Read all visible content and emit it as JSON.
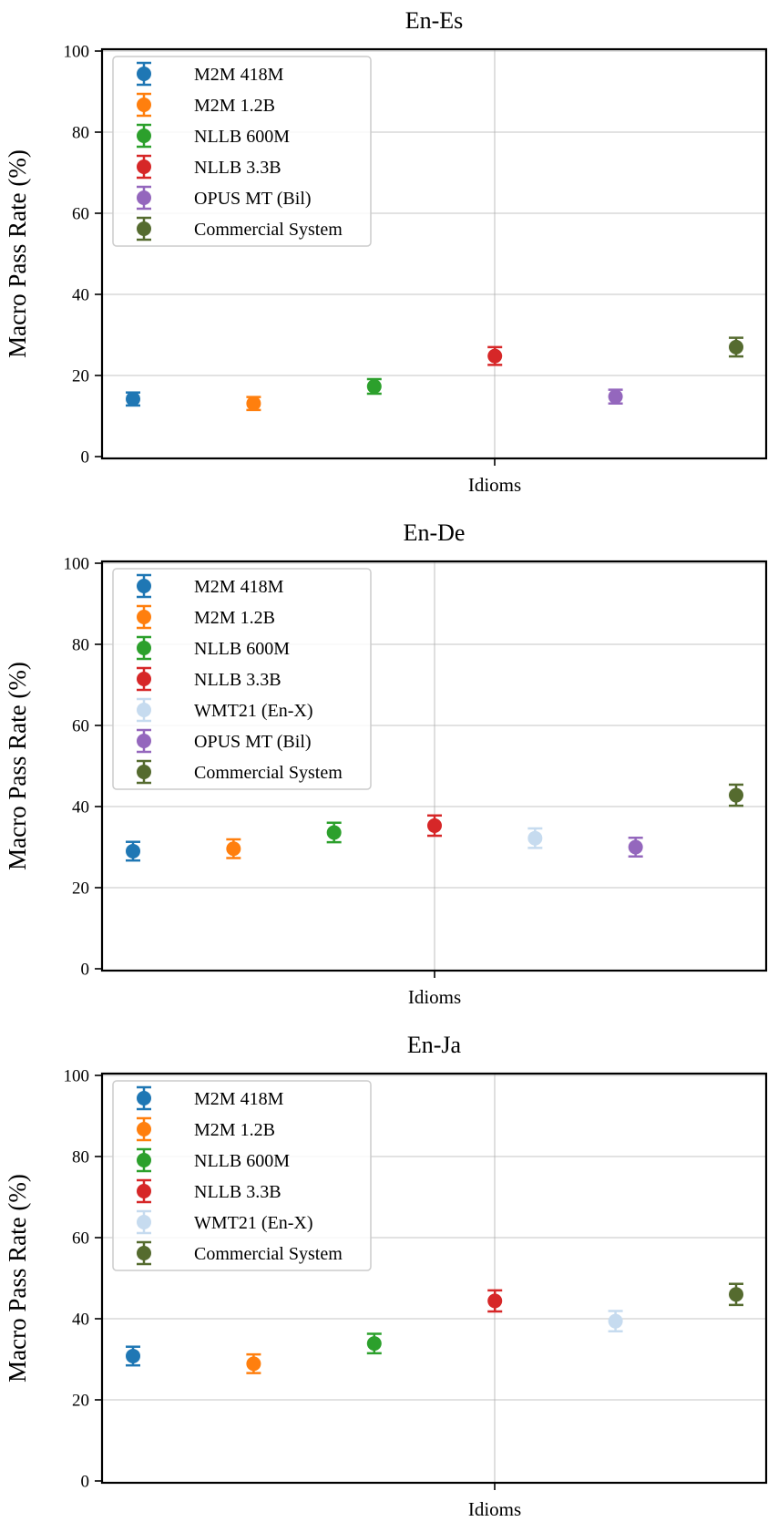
{
  "chart_data": [
    {
      "type": "scatter",
      "title": "En-Es",
      "xlabel": "",
      "ylabel": "Macro Pass Rate (%)",
      "category": "Idioms",
      "ylim": [
        0,
        100
      ],
      "yticks": [
        0,
        20,
        40,
        60,
        80,
        100
      ],
      "grid": true,
      "legend_position": "top-left",
      "series": [
        {
          "name": "M2M 418M",
          "color": "#1f77b4",
          "value": 14.2,
          "err": 1.6
        },
        {
          "name": "M2M 1.2B",
          "color": "#ff7f0e",
          "value": 13.1,
          "err": 1.6
        },
        {
          "name": "NLLB 600M",
          "color": "#2ca02c",
          "value": 17.3,
          "err": 1.8
        },
        {
          "name": "NLLB 3.3B",
          "color": "#d62728",
          "value": 24.8,
          "err": 2.2
        },
        {
          "name": "OPUS MT (Bil)",
          "color": "#9467bd",
          "value": 14.8,
          "err": 1.7
        },
        {
          "name": "Commercial System",
          "color": "#556b2f",
          "value": 27.0,
          "err": 2.3
        }
      ]
    },
    {
      "type": "scatter",
      "title": "En-De",
      "xlabel": "",
      "ylabel": "Macro Pass Rate (%)",
      "category": "Idioms",
      "ylim": [
        0,
        100
      ],
      "yticks": [
        0,
        20,
        40,
        60,
        80,
        100
      ],
      "grid": true,
      "legend_position": "top-left",
      "series": [
        {
          "name": "M2M 418M",
          "color": "#1f77b4",
          "value": 29.0,
          "err": 2.3
        },
        {
          "name": "M2M 1.2B",
          "color": "#ff7f0e",
          "value": 29.6,
          "err": 2.3
        },
        {
          "name": "NLLB 600M",
          "color": "#2ca02c",
          "value": 33.6,
          "err": 2.4
        },
        {
          "name": "NLLB 3.3B",
          "color": "#d62728",
          "value": 35.3,
          "err": 2.5
        },
        {
          "name": "WMT21 (En-X)",
          "color": "#c6dbef",
          "value": 32.2,
          "err": 2.4
        },
        {
          "name": "OPUS MT (Bil)",
          "color": "#9467bd",
          "value": 30.0,
          "err": 2.3
        },
        {
          "name": "Commercial System",
          "color": "#556b2f",
          "value": 42.8,
          "err": 2.6
        }
      ]
    },
    {
      "type": "scatter",
      "title": "En-Ja",
      "xlabel": "",
      "ylabel": "Macro Pass Rate (%)",
      "category": "Idioms",
      "ylim": [
        0,
        100
      ],
      "yticks": [
        0,
        20,
        40,
        60,
        80,
        100
      ],
      "grid": true,
      "legend_position": "top-left",
      "series": [
        {
          "name": "M2M 418M",
          "color": "#1f77b4",
          "value": 30.8,
          "err": 2.3
        },
        {
          "name": "M2M 1.2B",
          "color": "#ff7f0e",
          "value": 28.9,
          "err": 2.3
        },
        {
          "name": "NLLB 600M",
          "color": "#2ca02c",
          "value": 33.9,
          "err": 2.4
        },
        {
          "name": "NLLB 3.3B",
          "color": "#d62728",
          "value": 44.4,
          "err": 2.6
        },
        {
          "name": "WMT21 (En-X)",
          "color": "#c6dbef",
          "value": 39.4,
          "err": 2.5
        },
        {
          "name": "Commercial System",
          "color": "#556b2f",
          "value": 46.0,
          "err": 2.6
        }
      ]
    }
  ]
}
